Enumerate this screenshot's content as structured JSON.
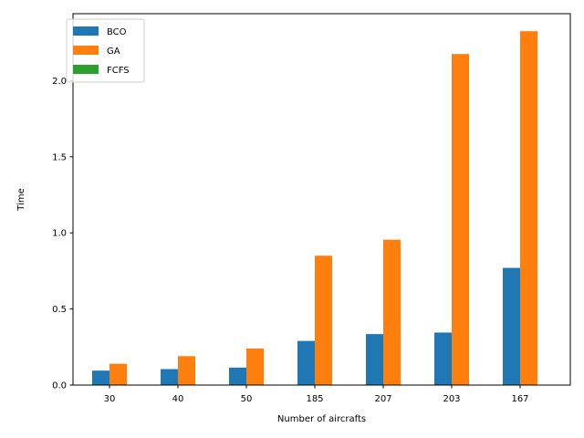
{
  "chart_data": {
    "type": "bar",
    "categories": [
      "30",
      "40",
      "50",
      "185",
      "207",
      "203",
      "167"
    ],
    "series": [
      {
        "name": "BCO",
        "color": "#1f77b4",
        "values": [
          0.095,
          0.105,
          0.115,
          0.29,
          0.335,
          0.345,
          0.77
        ]
      },
      {
        "name": "GA",
        "color": "#ff7f0e",
        "values": [
          0.14,
          0.19,
          0.24,
          0.85,
          0.955,
          2.175,
          2.325
        ]
      },
      {
        "name": "FCFS",
        "color": "#2ca02c",
        "values": [
          0,
          0,
          0,
          0,
          0,
          0,
          0
        ]
      }
    ],
    "xlabel": "Number of aircrafts",
    "ylabel": "Time",
    "ylim": [
      0,
      2.44
    ],
    "yticks": [
      "0.0",
      "0.5",
      "1.0",
      "1.5",
      "2.0"
    ],
    "grid": false,
    "legend": "top-left"
  }
}
